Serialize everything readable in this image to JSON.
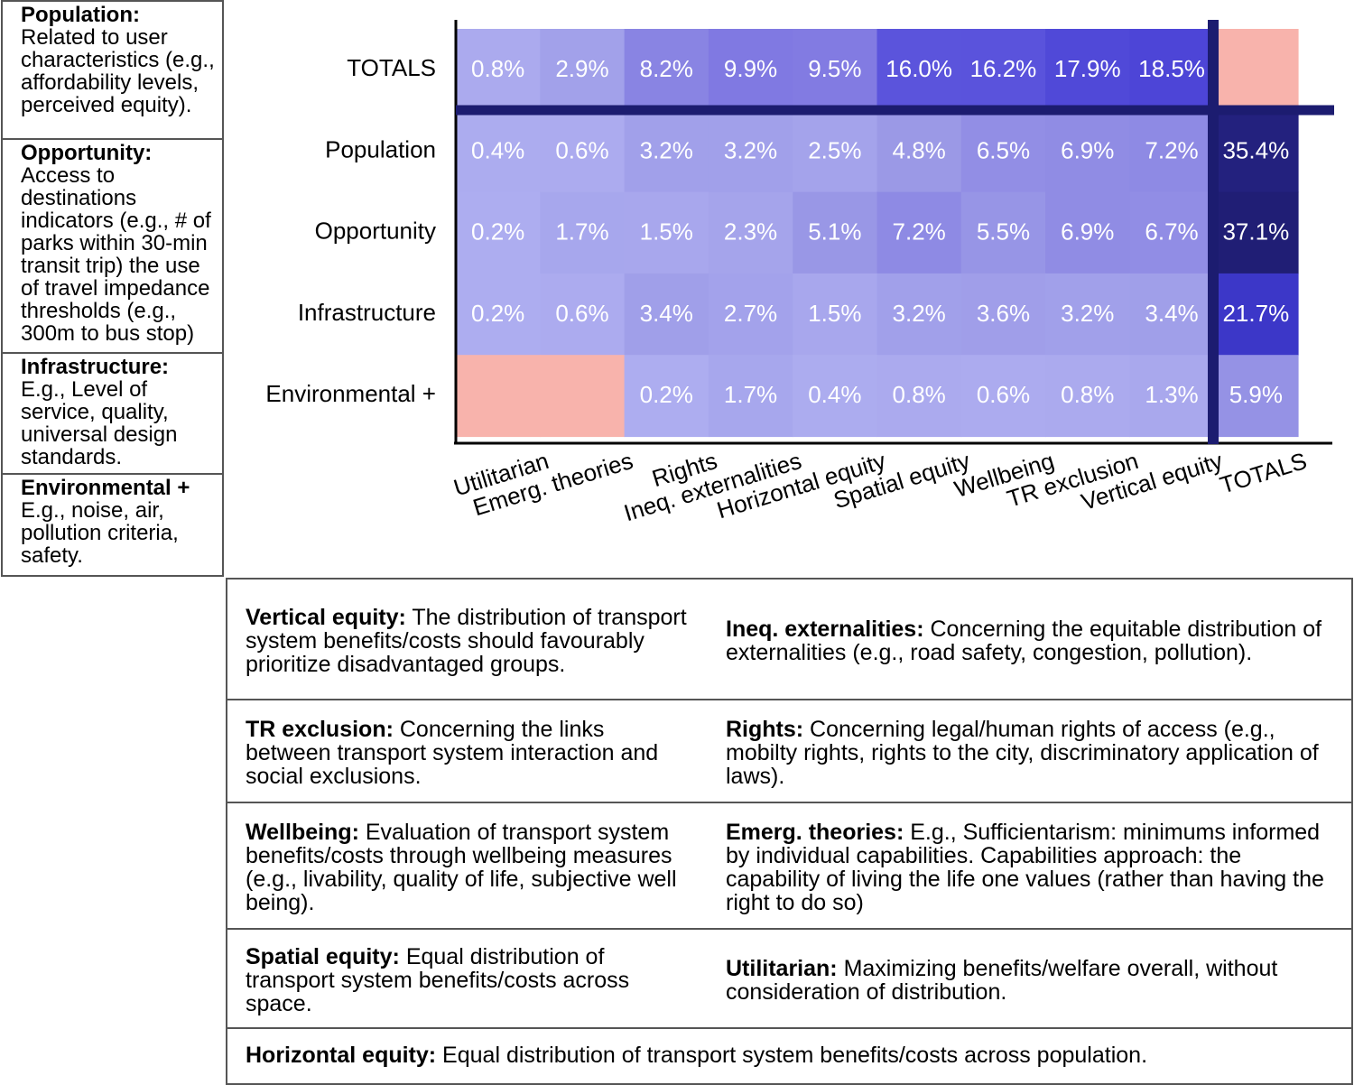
{
  "left_definitions": [
    {
      "term": "Population:",
      "text": "Related to user characteristics (e.g., affordability levels, perceived equity)."
    },
    {
      "term": "Opportunity:",
      "text": "Access to destinations indicators (e.g., # of parks within 30-min transit trip) the use of travel impedance thresholds (e.g., 300m to bus stop)"
    },
    {
      "term": "Infrastructure:",
      "text": "E.g., Level of service, quality, universal design standards."
    },
    {
      "term": "Environmental +",
      "text": "E.g., noise, air, pollution criteria, safety."
    }
  ],
  "chart_data": {
    "type": "heatmap",
    "columns": [
      "Utilitarian",
      "Emerg. theories",
      "Rights",
      "Ineq. externalities",
      "Horizontal equity",
      "Spatial equity",
      "Wellbeing",
      "TR exclusion",
      "Vertical equity",
      "TOTALS"
    ],
    "rows": [
      "TOTALS",
      "Population",
      "Opportunity",
      "Infrastructure",
      "Environmental +"
    ],
    "values": [
      [
        0.8,
        2.9,
        8.2,
        9.9,
        9.5,
        16.0,
        16.2,
        17.9,
        18.5,
        null
      ],
      [
        0.4,
        0.6,
        3.2,
        3.2,
        2.5,
        4.8,
        6.5,
        6.9,
        7.2,
        35.4
      ],
      [
        0.2,
        1.7,
        1.5,
        2.3,
        5.1,
        7.2,
        5.5,
        6.9,
        6.7,
        37.1
      ],
      [
        0.2,
        0.6,
        3.4,
        2.7,
        1.5,
        3.2,
        3.6,
        3.2,
        3.4,
        21.7
      ],
      [
        null,
        null,
        0.2,
        1.7,
        0.4,
        0.8,
        0.6,
        0.8,
        1.3,
        5.9
      ]
    ],
    "labels": [
      [
        "0.8%",
        "2.9%",
        "8.2%",
        "9.9%",
        "9.5%",
        "16.0%",
        "16.2%",
        "17.9%",
        "18.5%",
        ""
      ],
      [
        "0.4%",
        "0.6%",
        "3.2%",
        "3.2%",
        "2.5%",
        "4.8%",
        "6.5%",
        "6.9%",
        "7.2%",
        "35.4%"
      ],
      [
        "0.2%",
        "1.7%",
        "1.5%",
        "2.3%",
        "5.1%",
        "7.2%",
        "5.5%",
        "6.9%",
        "6.7%",
        "37.1%"
      ],
      [
        "0.2%",
        "0.6%",
        "3.4%",
        "2.7%",
        "1.5%",
        "3.2%",
        "3.6%",
        "3.2%",
        "3.4%",
        "21.7%"
      ],
      [
        "",
        "",
        "0.2%",
        "1.7%",
        "0.4%",
        "0.8%",
        "0.6%",
        "0.8%",
        "1.3%",
        "5.9%"
      ]
    ],
    "colors": {
      "empty": "#f8b3ac",
      "scale": [
        [
          0.0,
          "#aeaef0"
        ],
        [
          5.0,
          "#9a98e6"
        ],
        [
          10.0,
          "#7f78e2"
        ],
        [
          16.0,
          "#5b54dc"
        ],
        [
          19.0,
          "#4a42d6"
        ],
        [
          22.0,
          "#3a36c6"
        ],
        [
          35.0,
          "#242280"
        ],
        [
          38.0,
          "#1e1c70"
        ]
      ],
      "divider": "#1c1c70",
      "axis": "#000000"
    },
    "grid": false
  },
  "bottom_definitions": [
    [
      {
        "term": "Vertical equity:",
        "text": " The distribution of transport system benefits/costs should favourably prioritize disadvantaged groups."
      },
      {
        "term": "Ineq. externalities:",
        "text": " Concerning the equitable distribution of externalities (e.g., road safety, congestion, pollution)."
      }
    ],
    [
      {
        "term": "TR exclusion:",
        "text": " Concerning the links between transport system interaction and social exclusions."
      },
      {
        "term": "Rights:",
        "text": " Concerning legal/human rights of access (e.g., mobilty rights, rights to the city, discriminatory application of laws)."
      }
    ],
    [
      {
        "term": "Wellbeing:",
        "text": " Evaluation of transport system benefits/costs through wellbeing measures (e.g., livability, quality of life, subjective well being)."
      },
      {
        "term": "Emerg. theories:",
        "text": " E.g., Sufficientarism: minimums informed by individual capabilities. Capabilities approach: the capability of living the life one values (rather than having the right to do so)"
      }
    ],
    [
      {
        "term": "Spatial equity:",
        "text": " Equal distribution of transport system benefits/costs across space."
      },
      {
        "term": "Utilitarian:",
        "text": " Maximizing benefits/welfare overall, without consideration of distribution."
      }
    ],
    [
      {
        "term": "Horizontal equity:",
        "text": " Equal distribution of transport system benefits/costs across population."
      }
    ]
  ]
}
